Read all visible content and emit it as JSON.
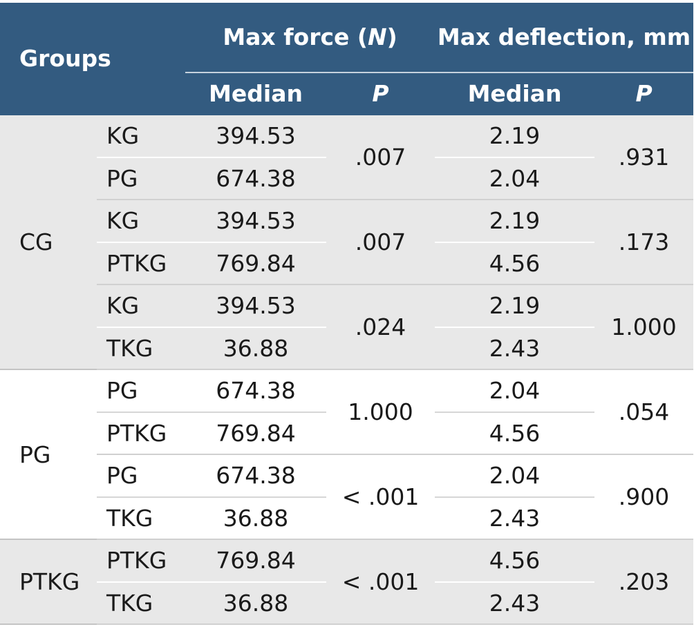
{
  "header": {
    "groups": "Groups",
    "max_force_prefix": "Max force (",
    "max_force_unit": "N",
    "max_force_suffix": ")",
    "max_deflection": "Max deflection, mm",
    "median": "Median",
    "p": "P"
  },
  "groups": [
    {
      "name": "CG",
      "comparisons": [
        {
          "a": "KG",
          "b": "PG",
          "force_a": "394.53",
          "force_b": "674.38",
          "force_p": ".007",
          "defl_a": "2.19",
          "defl_b": "2.04",
          "defl_p": ".931"
        },
        {
          "a": "KG",
          "b": "PTKG",
          "force_a": "394.53",
          "force_b": "769.84",
          "force_p": ".007",
          "defl_a": "2.19",
          "defl_b": "4.56",
          "defl_p": ".173"
        },
        {
          "a": "KG",
          "b": "TKG",
          "force_a": "394.53",
          "force_b": "36.88",
          "force_p": ".024",
          "defl_a": "2.19",
          "defl_b": "2.43",
          "defl_p": "1.000"
        }
      ]
    },
    {
      "name": "PG",
      "comparisons": [
        {
          "a": "PG",
          "b": "PTKG",
          "force_a": "674.38",
          "force_b": "769.84",
          "force_p": "1.000",
          "defl_a": "2.04",
          "defl_b": "4.56",
          "defl_p": ".054"
        },
        {
          "a": "PG",
          "b": "TKG",
          "force_a": "674.38",
          "force_b": "36.88",
          "force_p": "< .001",
          "defl_a": "2.04",
          "defl_b": "2.43",
          "defl_p": ".900"
        }
      ]
    },
    {
      "name": "PTKG",
      "comparisons": [
        {
          "a": "PTKG",
          "b": "TKG",
          "force_a": "769.84",
          "force_b": "36.88",
          "force_p": "< .001",
          "defl_a": "4.56",
          "defl_b": "2.43",
          "defl_p": ".203"
        }
      ]
    }
  ],
  "colors": {
    "header_bg": "#335b80",
    "header_text": "#ffffff",
    "shaded_row": "#e8e8e8"
  }
}
